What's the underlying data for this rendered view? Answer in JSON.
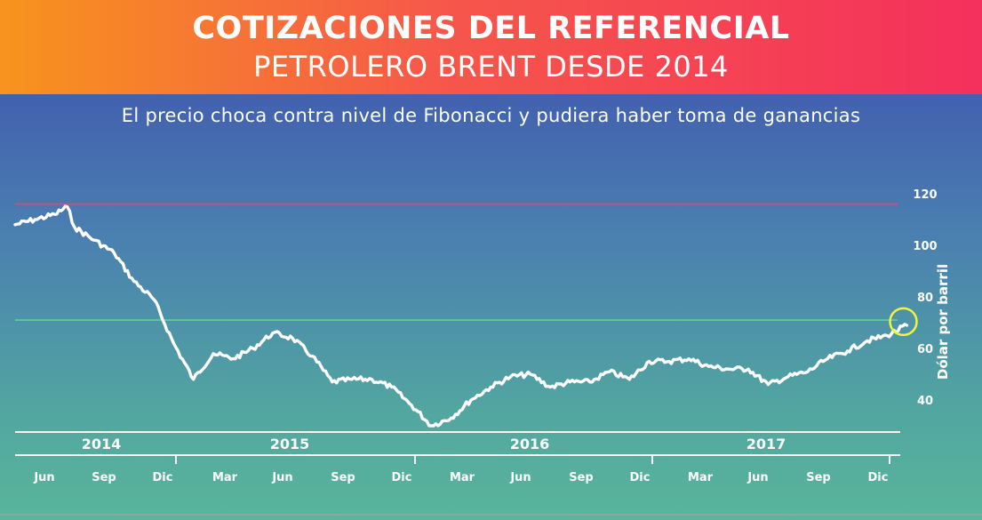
{
  "header": {
    "title_line1": "COTIZACIONES DEL REFERENCIAL",
    "title_line2": "PETROLERO BRENT DESDE 2014"
  },
  "subtitle": "El precio choca contra nivel de Fibonacci y pudiera haber toma de ganancias",
  "colors": {
    "header_left": "#f7941d",
    "header_right": "#f4305c",
    "resistance_line": "#ff3a72",
    "fibonacci_line": "#5fd0a0",
    "price_line": "#ffffff",
    "highlight_circle": "#f3f33a"
  },
  "chart_data": {
    "type": "line",
    "title": "COTIZACIONES DEL REFERENCIAL PETROLERO BRENT DESDE 2014",
    "subtitle": "El precio choca contra nivel de Fibonacci y pudiera haber toma de ganancias",
    "ylabel": "Dólar por barril",
    "y_ticks": [
      40,
      60,
      80,
      100,
      120
    ],
    "ylim": [
      28,
      125
    ],
    "years": [
      "2014",
      "2015",
      "2016",
      "2017"
    ],
    "month_ticks": [
      "Jun",
      "Sep",
      "Dic",
      "Mar",
      "Jun",
      "Sep",
      "Dic",
      "Mar",
      "Jun",
      "Sep",
      "Dic",
      "Mar",
      "Jun",
      "Sep",
      "Dic"
    ],
    "horizontal_lines": [
      {
        "value": 116,
        "role": "resistance"
      },
      {
        "value": 71,
        "role": "fibonacci"
      }
    ],
    "highlight_point": {
      "x": "2018-01",
      "y": 69
    },
    "series": [
      {
        "x": [
          "2014-04",
          "2014-05",
          "2014-06",
          "2014-06-20",
          "2014-07",
          "2014-08",
          "2014-09",
          "2014-10",
          "2014-11",
          "2014-12",
          "2015-01",
          "2015-02",
          "2015-03",
          "2015-04",
          "2015-05",
          "2015-06",
          "2015-07",
          "2015-08",
          "2015-09",
          "2015-10",
          "2015-11",
          "2015-12",
          "2016-01",
          "2016-02",
          "2016-03",
          "2016-04",
          "2016-05",
          "2016-06",
          "2016-07",
          "2016-08",
          "2016-09",
          "2016-10",
          "2016-11",
          "2016-12",
          "2017-01",
          "2017-02",
          "2017-03",
          "2017-04",
          "2017-05",
          "2017-06",
          "2017-07",
          "2017-08",
          "2017-09",
          "2017-10",
          "2017-11",
          "2017-12",
          "2018-01"
        ],
        "values": [
          108,
          110,
          112,
          115,
          107,
          102,
          97,
          86,
          79,
          62,
          48,
          58,
          56,
          60,
          66,
          64,
          57,
          47,
          48,
          48,
          45,
          38,
          30,
          33,
          40,
          45,
          49,
          50,
          45,
          47,
          47,
          51,
          48,
          55,
          55,
          56,
          53,
          52,
          52,
          46,
          49,
          51,
          56,
          59,
          63,
          65,
          69
        ]
      }
    ]
  }
}
